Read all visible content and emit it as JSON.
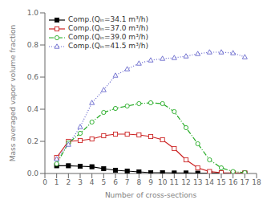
{
  "chart_data": {
    "type": "line",
    "x": [
      1,
      2,
      3,
      4,
      5,
      6,
      7,
      8,
      9,
      10,
      11,
      12,
      13,
      14,
      15,
      16,
      17
    ],
    "series": [
      {
        "name": "Comp.(Qᵢₙ=34.1 m³/h)",
        "color": "#000000",
        "marker": "square",
        "line_style": "solid",
        "values": [
          0.048,
          0.048,
          0.045,
          0.042,
          0.03,
          0.02,
          0.015,
          0.01,
          0.005,
          0.005,
          0.003,
          0.003,
          0.002,
          0.002,
          0.002,
          0.002,
          0.002
        ]
      },
      {
        "name": "Comp.(Qᵢₙ=37.0 m³/h)",
        "color": "#cc2222",
        "marker": "open_square",
        "line_style": "solid",
        "values": [
          0.1,
          0.2,
          0.205,
          0.215,
          0.235,
          0.245,
          0.245,
          0.24,
          0.23,
          0.21,
          0.155,
          0.085,
          0.035,
          0.012,
          0.005,
          0.003,
          0.002
        ]
      },
      {
        "name": "Comp.(Qᵢₙ=39.0 m³/h)",
        "color": "#22aa22",
        "marker": "open_circle",
        "line_style": "dashdot",
        "values": [
          0.06,
          0.19,
          0.25,
          0.32,
          0.38,
          0.405,
          0.42,
          0.435,
          0.44,
          0.435,
          0.385,
          0.285,
          0.185,
          0.085,
          0.035,
          0.012,
          0.005
        ]
      },
      {
        "name": "Comp.(Qᵢₙ=41.5 m³/h)",
        "color": "#6666cc",
        "marker": "open_triangle",
        "line_style": "dotted",
        "values": [
          0.09,
          0.18,
          0.29,
          0.44,
          0.52,
          0.61,
          0.65,
          0.685,
          0.705,
          0.715,
          0.72,
          0.73,
          0.745,
          0.755,
          0.755,
          0.75,
          0.725
        ]
      }
    ],
    "xlabel": "Number of cross-sections",
    "ylabel": "Mass averaged vapor volume fraction",
    "xlim": [
      0,
      18
    ],
    "ylim": [
      0,
      1
    ],
    "xticks": [
      0,
      1,
      2,
      3,
      4,
      5,
      6,
      7,
      8,
      9,
      10,
      11,
      12,
      13,
      14,
      15,
      16,
      17,
      18
    ],
    "yticks": [
      {
        "value": 0,
        "label": "0.0"
      },
      0.2,
      0.4,
      0.6,
      0.8,
      {
        "value": 1,
        "label": "1.0"
      }
    ],
    "legend": "upper left",
    "grid": false
  }
}
